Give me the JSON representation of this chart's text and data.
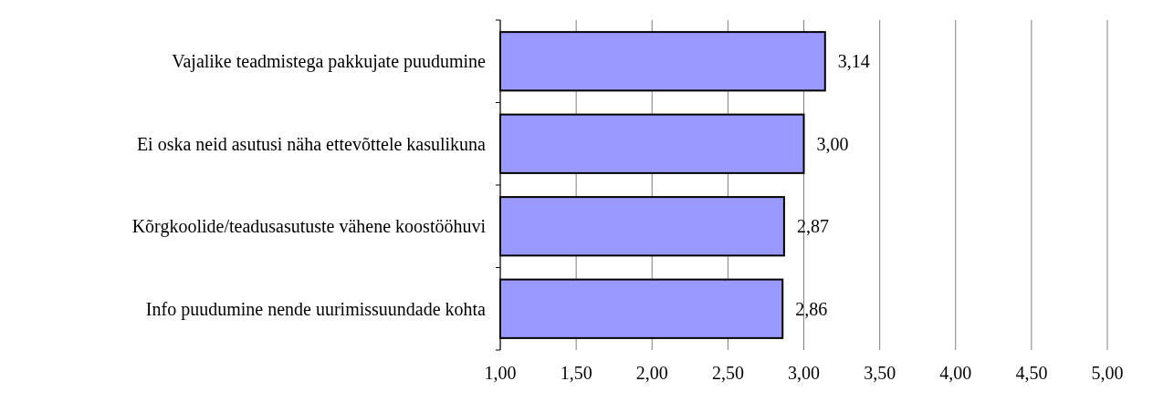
{
  "chart_data": {
    "type": "bar",
    "orientation": "horizontal",
    "categories": [
      "Vajalike teadmistega pakkujate puudumine",
      "Ei oska neid asutusi näha ettevõttele kasulikuna",
      "Kõrgkoolide/teadusasutuste vähene koostööhuvi",
      "Info puudumine nende uurimissuundade kohta"
    ],
    "values": [
      3.14,
      3.0,
      2.87,
      2.86
    ],
    "value_labels": [
      "3,14",
      "3,00",
      "2,87",
      "2,86"
    ],
    "color": "#9999ff",
    "xlim": [
      1,
      5
    ],
    "xticks": [
      {
        "value": 1,
        "label": "1,00"
      },
      {
        "value": 1.5,
        "label": "1,50"
      },
      {
        "value": 2,
        "label": "2,00"
      },
      {
        "value": 2.5,
        "label": "2,50"
      },
      {
        "value": 3,
        "label": "3,00"
      },
      {
        "value": 3.5,
        "label": "3,50"
      },
      {
        "value": 4,
        "label": "4,00"
      },
      {
        "value": 4.5,
        "label": "4,50"
      },
      {
        "value": 5,
        "label": "5,00"
      }
    ],
    "grid": "x"
  }
}
